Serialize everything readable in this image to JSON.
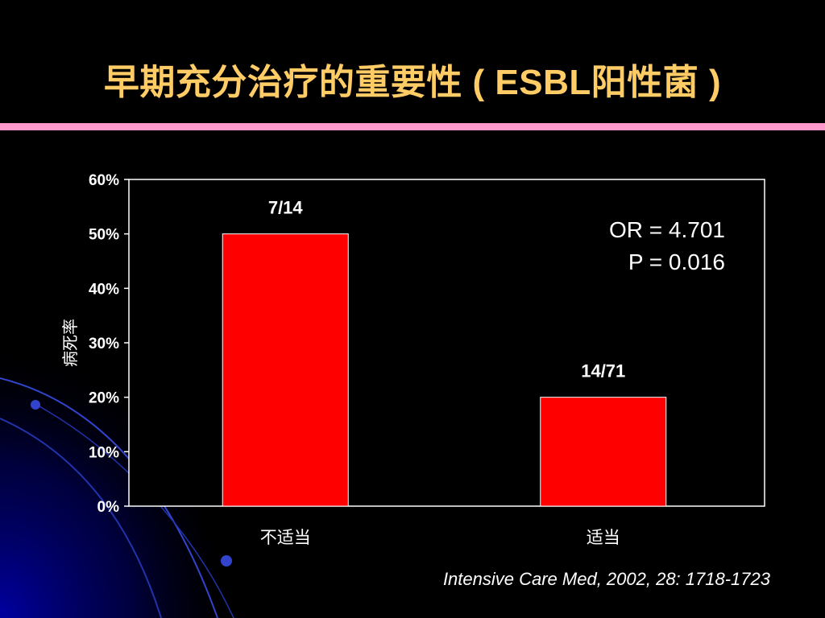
{
  "slide": {
    "title": "早期充分治疗的重要性 ( ESBL阳性菌 )",
    "citation": "Intensive Care Med, 2002, 28: 1718-1723",
    "colors": {
      "background": "#000000",
      "title": "#ffcc66",
      "rule": "#ff99cc",
      "bar": "#ff0000",
      "deco": "#0000aa"
    }
  },
  "stats": {
    "or_text": "OR = 4.701",
    "p_text": "P = 0.016"
  },
  "chart_data": {
    "type": "bar",
    "categories": [
      "不适当",
      "适当"
    ],
    "values": [
      0.5,
      0.2
    ],
    "data_labels": [
      "7/14",
      "14/71"
    ],
    "ylabel": "病死率",
    "ylim": [
      0,
      0.6
    ],
    "yticks": [
      "0%",
      "10%",
      "20%",
      "30%",
      "40%",
      "50%",
      "60%"
    ],
    "grid": false,
    "bar_color": "#ff0000"
  }
}
